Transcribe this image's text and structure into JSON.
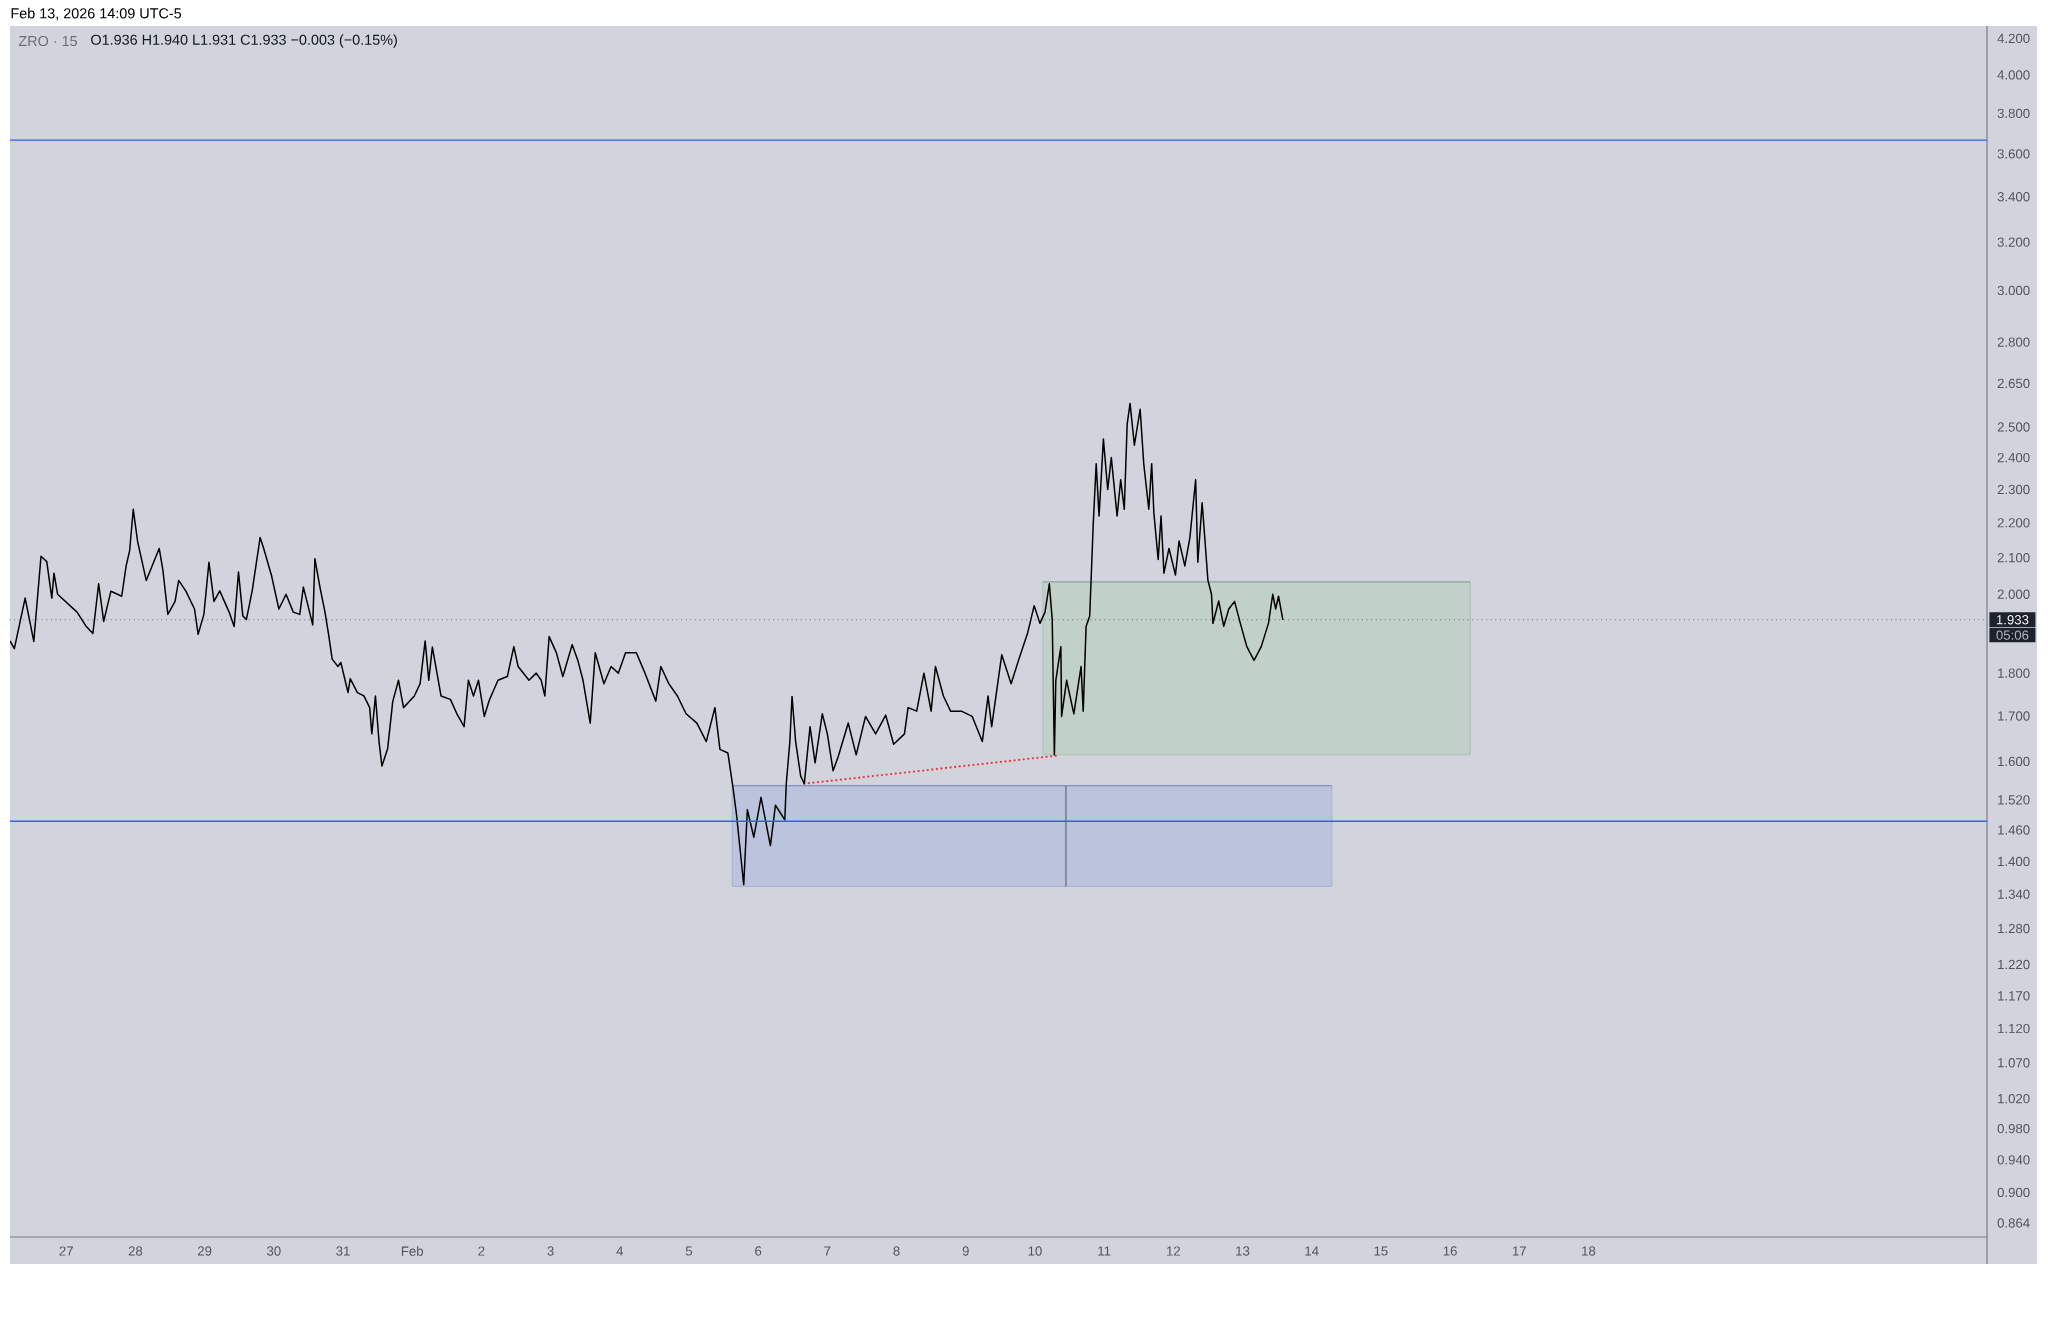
{
  "chart_data": {
    "type": "line",
    "title": "ZRO · 15",
    "subtitle": "O1.936  H1.940  L1.931  C1.933  −0.003 (−0.15%)",
    "annotations": [
      "Feb 13, 2026 14:09 UTC-5",
      "05:06"
    ],
    "log": "y",
    "xlim": [
      "2026-01-26T04:30",
      "2026-02-23T18:15"
    ],
    "ylim": [
      0.848,
      4.27
    ],
    "xticks": [
      {
        "value": "2026-01-27",
        "label": "27"
      },
      {
        "value": "2026-01-28",
        "label": "28"
      },
      {
        "value": "2026-01-29",
        "label": "29"
      },
      {
        "value": "2026-01-30",
        "label": "30"
      },
      {
        "value": "2026-01-31",
        "label": "31"
      },
      {
        "value": "2026-02-01",
        "label": "Feb"
      },
      {
        "value": "2026-02-02",
        "label": "2"
      },
      {
        "value": "2026-02-03",
        "label": "3"
      },
      {
        "value": "2026-02-04",
        "label": "4"
      },
      {
        "value": "2026-02-05",
        "label": "5"
      },
      {
        "value": "2026-02-06",
        "label": "6"
      },
      {
        "value": "2026-02-07",
        "label": "7"
      },
      {
        "value": "2026-02-08",
        "label": "8"
      },
      {
        "value": "2026-02-09",
        "label": "9"
      },
      {
        "value": "2026-02-10",
        "label": "10"
      },
      {
        "value": "2026-02-11",
        "label": "11"
      },
      {
        "value": "2026-02-12",
        "label": "12"
      },
      {
        "value": "2026-02-13",
        "label": "13"
      },
      {
        "value": "2026-02-14",
        "label": "14"
      },
      {
        "value": "2026-02-15",
        "label": "15"
      },
      {
        "value": "2026-02-16",
        "label": "16"
      },
      {
        "value": "2026-02-17",
        "label": "17"
      },
      {
        "value": "2026-02-18",
        "label": "18"
      }
    ],
    "yticks": [
      {
        "value": 0.864,
        "label": "0.864"
      },
      {
        "value": 0.9,
        "label": "0.900"
      },
      {
        "value": 0.94,
        "label": "0.940"
      },
      {
        "value": 0.98,
        "label": "0.980"
      },
      {
        "value": 1.02,
        "label": "1.020"
      },
      {
        "value": 1.07,
        "label": "1.070"
      },
      {
        "value": 1.12,
        "label": "1.120"
      },
      {
        "value": 1.17,
        "label": "1.170"
      },
      {
        "value": 1.22,
        "label": "1.220"
      },
      {
        "value": 1.28,
        "label": "1.280"
      },
      {
        "value": 1.34,
        "label": "1.340"
      },
      {
        "value": 1.4,
        "label": "1.400"
      },
      {
        "value": 1.46,
        "label": "1.460"
      },
      {
        "value": 1.52,
        "label": "1.520"
      },
      {
        "value": 1.6,
        "label": "1.600"
      },
      {
        "value": 1.7,
        "label": "1.700"
      },
      {
        "value": 1.8,
        "label": "1.800"
      },
      {
        "value": 2.0,
        "label": "2.000"
      },
      {
        "value": 2.1,
        "label": "2.100"
      },
      {
        "value": 2.2,
        "label": "2.200"
      },
      {
        "value": 2.3,
        "label": "2.300"
      },
      {
        "value": 2.4,
        "label": "2.400"
      },
      {
        "value": 2.5,
        "label": "2.500"
      },
      {
        "value": 2.65,
        "label": "2.650"
      },
      {
        "value": 2.8,
        "label": "2.800"
      },
      {
        "value": 3.0,
        "label": "3.000"
      },
      {
        "value": 3.2,
        "label": "3.200"
      },
      {
        "value": 3.4,
        "label": "3.400"
      },
      {
        "value": 3.6,
        "label": "3.600"
      },
      {
        "value": 3.8,
        "label": "3.800"
      },
      {
        "value": 4.0,
        "label": "4.000"
      },
      {
        "value": 4.2,
        "label": "4.200"
      }
    ],
    "ref_lines": [
      {
        "axis": "y",
        "value": 3.667,
        "color": "#2962ff"
      },
      {
        "axis": "y",
        "value": 1.477,
        "color": "#2962ff"
      },
      {
        "axis": "y",
        "value": 1.933,
        "label": "1.933",
        "color": "#5d606b",
        "line_style": "dotted"
      }
    ],
    "series": [
      {
        "color": "#8fa99b",
        "x": [
          "2026-02-10T02:45",
          "2026-02-16T07:00"
        ],
        "values": [
          2.033,
          2.033
        ],
        "upper": [
          2.033,
          2.033
        ],
        "lower": [
          1.614,
          1.614
        ]
      },
      {
        "color": "#8691c0",
        "x": [
          "2026-02-05T15:00",
          "2026-02-14T07:00"
        ],
        "values": [
          1.549,
          1.549
        ],
        "upper": [
          1.549,
          1.549
        ],
        "lower": [
          1.354,
          1.354
        ]
      },
      {
        "type": "line",
        "color": "#787b86",
        "x": [
          "2026-02-10T10:45",
          "2026-02-10T10:45"
        ],
        "values": [
          1.549,
          1.354
        ]
      },
      {
        "type": "line",
        "color": "#f23645",
        "line_style": "dotted",
        "x": [
          "2026-02-06T16:00",
          "2026-02-10T07:15"
        ],
        "values": [
          1.553,
          1.612
        ]
      },
      {
        "type": "line",
        "color": "#000000",
        "x": [
          "2026-01-26T04:30",
          "2026-01-26T06:00",
          "2026-01-26T09:45",
          "2026-01-26T12:45",
          "2026-01-26T15:15",
          "2026-01-26T17:15",
          "2026-01-26T19:00",
          "2026-01-26T19:45",
          "2026-01-26T21:00",
          "2026-01-27T03:45",
          "2026-01-27T06:45",
          "2026-01-27T09:15",
          "2026-01-27T11:15",
          "2026-01-27T13:00",
          "2026-01-27T15:30",
          "2026-01-27T19:15",
          "2026-01-27T20:45",
          "2026-01-27T22:00",
          "2026-01-27T23:15",
          "2026-01-28T00:45",
          "2026-01-28T03:45",
          "2026-01-28T05:45",
          "2026-01-28T08:15",
          "2026-01-28T09:30",
          "2026-01-28T11:15",
          "2026-01-28T13:45",
          "2026-01-28T15:00",
          "2026-01-28T17:30",
          "2026-01-28T20:30",
          "2026-01-28T21:45",
          "2026-01-28T23:45",
          "2026-01-29T01:30",
          "2026-01-29T03:15",
          "2026-01-29T05:15",
          "2026-01-29T08:30",
          "2026-01-29T10:15",
          "2026-01-29T11:45",
          "2026-01-29T13:15",
          "2026-01-29T14:30",
          "2026-01-29T16:30",
          "2026-01-29T19:15",
          "2026-01-29T20:30",
          "2026-01-29T23:15",
          "2026-01-30T01:45",
          "2026-01-30T04:15",
          "2026-01-30T06:45",
          "2026-01-30T09:00",
          "2026-01-30T10:15",
          "2026-01-30T11:30",
          "2026-01-30T13:30",
          "2026-01-30T14:15",
          "2026-01-30T16:00",
          "2026-01-30T17:45",
          "2026-01-30T19:00",
          "2026-01-30T20:15",
          "2026-01-30T22:15",
          "2026-01-30T23:15",
          "2026-01-31T01:45",
          "2026-01-31T02:30",
          "2026-01-31T05:00",
          "2026-01-31T07:15",
          "2026-01-31T09:15",
          "2026-01-31T10:00",
          "2026-01-31T11:15",
          "2026-01-31T12:30",
          "2026-01-31T13:30",
          "2026-01-31T15:30",
          "2026-01-31T17:15",
          "2026-01-31T19:15",
          "2026-01-31T21:00",
          "2026-02-01T00:45",
          "2026-02-01T02:45",
          "2026-02-01T04:30",
          "2026-02-01T05:45",
          "2026-02-01T07:00",
          "2026-02-01T10:00",
          "2026-02-01T13:15",
          "2026-02-01T15:30",
          "2026-02-01T18:00",
          "2026-02-01T19:30",
          "2026-02-01T21:15",
          "2026-02-01T23:00",
          "2026-02-02T01:00",
          "2026-02-02T02:45",
          "2026-02-02T05:45",
          "2026-02-02T09:00",
          "2026-02-02T11:15",
          "2026-02-02T12:45",
          "2026-02-02T16:30",
          "2026-02-02T19:00",
          "2026-02-02T20:45",
          "2026-02-02T22:00",
          "2026-02-02T23:30",
          "2026-02-03T02:00",
          "2026-02-03T04:15",
          "2026-02-03T07:30",
          "2026-02-03T09:30",
          "2026-02-03T11:15",
          "2026-02-03T13:45",
          "2026-02-03T15:30",
          "2026-02-03T18:30",
          "2026-02-03T21:00",
          "2026-02-03T23:30",
          "2026-02-04T02:00",
          "2026-02-04T05:45",
          "2026-02-04T08:45",
          "2026-02-04T12:30",
          "2026-02-04T14:15",
          "2026-02-04T17:00",
          "2026-02-04T20:00",
          "2026-02-04T23:00",
          "2026-02-05T02:45",
          "2026-02-05T06:00",
          "2026-02-05T09:00",
          "2026-02-05T10:45",
          "2026-02-05T13:30",
          "2026-02-05T15:15",
          "2026-02-05T16:30",
          "2026-02-05T19:00",
          "2026-02-05T20:15",
          "2026-02-05T22:30",
          "2026-02-06T01:00",
          "2026-02-06T04:15",
          "2026-02-06T06:00",
          "2026-02-06T09:15",
          "2026-02-06T09:45",
          "2026-02-06T11:00",
          "2026-02-06T11:45",
          "2026-02-06T13:00",
          "2026-02-06T14:45",
          "2026-02-06T16:00",
          "2026-02-06T18:00",
          "2026-02-06T19:45",
          "2026-02-06T22:15",
          "2026-02-07T00:00",
          "2026-02-07T02:00",
          "2026-02-07T03:45",
          "2026-02-07T07:15",
          "2026-02-07T10:00",
          "2026-02-07T13:15",
          "2026-02-07T16:45",
          "2026-02-07T20:15",
          "2026-02-07T23:00",
          "2026-02-08T02:45",
          "2026-02-08T04:00",
          "2026-02-08T07:00",
          "2026-02-08T09:30",
          "2026-02-08T12:00",
          "2026-02-08T13:30",
          "2026-02-08T16:15",
          "2026-02-08T18:45",
          "2026-02-08T22:30",
          "2026-02-09T02:15",
          "2026-02-09T05:45",
          "2026-02-09T07:45",
          "2026-02-09T09:00",
          "2026-02-09T12:30",
          "2026-02-09T15:45",
          "2026-02-09T18:15",
          "2026-02-09T21:30",
          "2026-02-09T23:45",
          "2026-02-10T01:45",
          "2026-02-10T03:30",
          "2026-02-10T05:00",
          "2026-02-10T06:00",
          "2026-02-10T06:45",
          "2026-02-10T07:15",
          "2026-02-10T09:00",
          "2026-02-10T09:15",
          "2026-02-10T11:00",
          "2026-02-10T13:30",
          "2026-02-10T16:00",
          "2026-02-10T16:45",
          "2026-02-10T17:45",
          "2026-02-10T19:00",
          "2026-02-10T20:15",
          "2026-02-10T21:15",
          "2026-02-10T22:15",
          "2026-02-10T23:45",
          "2026-02-11T01:15",
          "2026-02-11T02:30",
          "2026-02-11T04:30",
          "2026-02-11T05:45",
          "2026-02-11T07:00",
          "2026-02-11T08:00",
          "2026-02-11T09:00",
          "2026-02-11T10:30",
          "2026-02-11T12:30",
          "2026-02-11T13:45",
          "2026-02-11T15:30",
          "2026-02-11T16:30",
          "2026-02-11T17:15",
          "2026-02-11T18:45",
          "2026-02-11T19:45",
          "2026-02-11T20:45",
          "2026-02-11T22:30",
          "2026-02-12T00:45",
          "2026-02-12T02:00",
          "2026-02-12T04:00",
          "2026-02-12T05:45",
          "2026-02-12T07:45",
          "2026-02-12T08:30",
          "2026-02-12T10:00",
          "2026-02-12T11:00",
          "2026-02-12T12:00",
          "2026-02-12T13:15",
          "2026-02-12T13:45",
          "2026-02-12T15:45",
          "2026-02-12T17:30",
          "2026-02-12T19:15",
          "2026-02-12T21:15",
          "2026-02-12T23:15",
          "2026-02-13T01:30",
          "2026-02-13T04:00",
          "2026-02-13T06:30",
          "2026-02-13T09:00",
          "2026-02-13T10:30",
          "2026-02-13T11:30",
          "2026-02-13T12:30",
          "2026-02-13T14:00"
        ],
        "values": [
          1.879,
          1.86,
          1.99,
          1.878,
          2.104,
          2.089,
          1.99,
          2.057,
          2.0,
          1.953,
          1.918,
          1.898,
          2.028,
          1.929,
          2.008,
          1.995,
          2.076,
          2.12,
          2.24,
          2.146,
          2.037,
          2.076,
          2.126,
          2.067,
          1.947,
          1.981,
          2.037,
          2.008,
          1.961,
          1.896,
          1.947,
          2.087,
          1.981,
          2.009,
          1.953,
          1.916,
          2.06,
          1.943,
          1.934,
          2.009,
          2.157,
          2.126,
          2.049,
          1.961,
          2.0,
          1.953,
          1.947,
          2.019,
          1.981,
          1.92,
          2.097,
          2.019,
          1.953,
          1.896,
          1.834,
          1.816,
          1.826,
          1.754,
          1.787,
          1.754,
          1.746,
          1.719,
          1.66,
          1.746,
          1.643,
          1.59,
          1.628,
          1.733,
          1.783,
          1.719,
          1.746,
          1.775,
          1.879,
          1.783,
          1.864,
          1.746,
          1.738,
          1.705,
          1.676,
          1.783,
          1.746,
          1.783,
          1.699,
          1.736,
          1.783,
          1.792,
          1.865,
          1.816,
          1.783,
          1.8,
          1.783,
          1.746,
          1.89,
          1.85,
          1.792,
          1.87,
          1.83,
          1.783,
          1.684,
          1.85,
          1.775,
          1.816,
          1.8,
          1.85,
          1.85,
          1.8,
          1.734,
          1.816,
          1.775,
          1.746,
          1.705,
          1.684,
          1.643,
          1.719,
          1.626,
          1.618,
          1.546,
          1.49,
          1.357,
          1.5,
          1.446,
          1.525,
          1.43,
          1.509,
          1.48,
          1.553,
          1.643,
          1.745,
          1.643,
          1.569,
          1.553,
          1.676,
          1.597,
          1.705,
          1.66,
          1.58,
          1.61,
          1.684,
          1.614,
          1.699,
          1.66,
          1.702,
          1.637,
          1.66,
          1.719,
          1.711,
          1.8,
          1.711,
          1.816,
          1.746,
          1.711,
          1.711,
          1.699,
          1.643,
          1.746,
          1.676,
          1.845,
          1.775,
          1.83,
          1.9,
          1.97,
          1.924,
          1.953,
          2.028,
          1.934,
          1.614,
          1.783,
          1.865,
          1.699,
          1.783,
          1.705,
          1.816,
          1.711,
          1.916,
          1.943,
          2.2,
          2.38,
          2.22,
          2.46,
          2.3,
          2.4,
          2.22,
          2.33,
          2.24,
          2.51,
          2.58,
          2.44,
          2.56,
          2.38,
          2.24,
          2.38,
          2.23,
          2.095,
          2.22,
          2.057,
          2.126,
          2.052,
          2.147,
          2.077,
          2.157,
          2.33,
          2.087,
          2.26,
          2.147,
          2.038,
          2.0,
          1.924,
          1.982,
          1.916,
          1.961,
          1.981,
          1.924,
          1.865,
          1.831,
          1.865,
          1.924,
          2.0,
          1.961,
          1.995,
          1.933
        ]
      }
    ]
  }
}
